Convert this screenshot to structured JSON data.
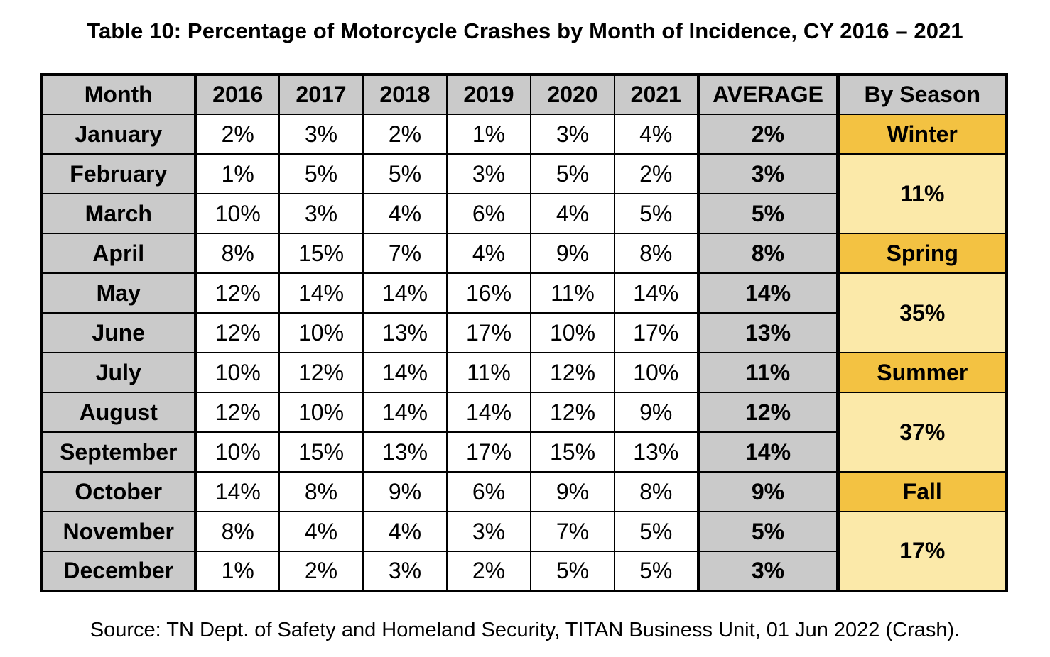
{
  "title": "Table 10: Percentage of Motorcycle Crashes by Month of Incidence, CY 2016 – 2021",
  "headers": [
    "Month",
    "2016",
    "2017",
    "2018",
    "2019",
    "2020",
    "2021",
    "AVERAGE",
    "By Season"
  ],
  "rows": [
    {
      "month": "January",
      "values": [
        "2%",
        "3%",
        "2%",
        "1%",
        "3%",
        "4%"
      ],
      "average": "2%"
    },
    {
      "month": "February",
      "values": [
        "1%",
        "5%",
        "5%",
        "3%",
        "5%",
        "2%"
      ],
      "average": "3%"
    },
    {
      "month": "March",
      "values": [
        "10%",
        "3%",
        "4%",
        "6%",
        "4%",
        "5%"
      ],
      "average": "5%"
    },
    {
      "month": "April",
      "values": [
        "8%",
        "15%",
        "7%",
        "4%",
        "9%",
        "8%"
      ],
      "average": "8%"
    },
    {
      "month": "May",
      "values": [
        "12%",
        "14%",
        "14%",
        "16%",
        "11%",
        "14%"
      ],
      "average": "14%"
    },
    {
      "month": "June",
      "values": [
        "12%",
        "10%",
        "13%",
        "17%",
        "10%",
        "17%"
      ],
      "average": "13%"
    },
    {
      "month": "July",
      "values": [
        "10%",
        "12%",
        "14%",
        "11%",
        "12%",
        "10%"
      ],
      "average": "11%"
    },
    {
      "month": "August",
      "values": [
        "12%",
        "10%",
        "14%",
        "14%",
        "12%",
        "9%"
      ],
      "average": "12%"
    },
    {
      "month": "September",
      "values": [
        "10%",
        "15%",
        "13%",
        "17%",
        "15%",
        "13%"
      ],
      "average": "14%"
    },
    {
      "month": "October",
      "values": [
        "14%",
        "8%",
        "9%",
        "6%",
        "9%",
        "8%"
      ],
      "average": "9%"
    },
    {
      "month": "November",
      "values": [
        "8%",
        "4%",
        "4%",
        "3%",
        "7%",
        "5%"
      ],
      "average": "5%"
    },
    {
      "month": "December",
      "values": [
        "1%",
        "2%",
        "3%",
        "2%",
        "5%",
        "5%"
      ],
      "average": "3%"
    }
  ],
  "seasons": [
    {
      "name": "Winter",
      "percent": "11%"
    },
    {
      "name": "Spring",
      "percent": "35%"
    },
    {
      "name": "Summer",
      "percent": "37%"
    },
    {
      "name": "Fall",
      "percent": "17%"
    }
  ],
  "source": "Source: TN Dept. of Safety and Homeland Security, TITAN Business Unit, 01 Jun 2022 (Crash).",
  "colors": {
    "header_bg": "#cacaca",
    "season_name_bg": "#f3c242",
    "season_pct_bg": "#fbe9a9",
    "value_bg": "#ffffff"
  }
}
